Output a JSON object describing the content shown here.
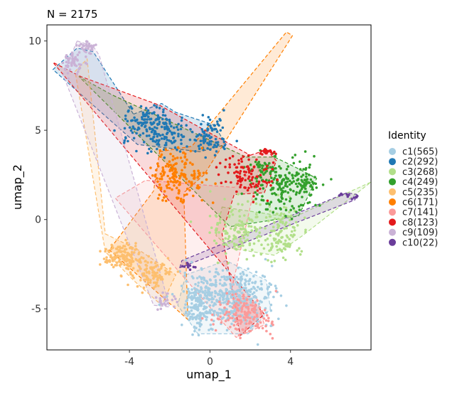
{
  "chart_data": {
    "type": "scatter",
    "title": "N = 2175",
    "xlabel": "umap_1",
    "ylabel": "umap_2",
    "xlim": [
      -8.1,
      8.0
    ],
    "ylim": [
      -7.3,
      10.9
    ],
    "xticks": [
      {
        "value": -4,
        "label": "-4"
      },
      {
        "value": 0,
        "label": "0"
      },
      {
        "value": 4,
        "label": "4"
      }
    ],
    "yticks": [
      {
        "value": 10,
        "label": "10"
      },
      {
        "value": 5,
        "label": "5"
      },
      {
        "value": 0,
        "label": "0"
      },
      {
        "value": -5,
        "label": "-5"
      }
    ],
    "legend": {
      "title": "Identity",
      "position": "right"
    },
    "series": [
      {
        "name": "c1",
        "label": "c1(565)",
        "count": 565,
        "color": "#A6CEE3",
        "centers": [
          [
            1.0,
            -4.3,
            1.0,
            0.85,
            0.7
          ],
          [
            -0.6,
            -4.7,
            0.35,
            0.8,
            0.3
          ]
        ],
        "hull": [
          [
            -1.2,
            -3.1
          ],
          [
            0.8,
            -2.3
          ],
          [
            2.8,
            -3.4
          ],
          [
            3.0,
            -5.0
          ],
          [
            1.9,
            -6.4
          ],
          [
            -0.6,
            -6.4
          ],
          [
            -1.6,
            -4.8
          ]
        ]
      },
      {
        "name": "c2",
        "label": "c2(292)",
        "count": 292,
        "color": "#1F78B4",
        "centers": [
          [
            -3.0,
            5.3,
            0.7,
            0.55,
            0.5
          ],
          [
            0.0,
            4.6,
            0.45,
            0.5,
            0.3
          ],
          [
            -2.0,
            4.5,
            0.7,
            0.5,
            0.2
          ]
        ],
        "hull": [
          [
            -3.8,
            5.9
          ],
          [
            -2.4,
            6.5
          ],
          [
            -1.7,
            6.0
          ],
          [
            0.2,
            5.3
          ],
          [
            0.8,
            4.2
          ],
          [
            -0.5,
            3.8
          ],
          [
            -3.6,
            4.2
          ],
          [
            -7.8,
            8.4
          ],
          [
            -6.6,
            9.6
          ],
          [
            -5.8,
            9.4
          ]
        ]
      },
      {
        "name": "c3",
        "label": "c3(268)",
        "count": 268,
        "color": "#B2DF8A",
        "centers": [
          [
            1.5,
            -0.5,
            0.7,
            0.7,
            0.55
          ],
          [
            3.5,
            -0.6,
            0.45,
            0.8,
            0.45
          ]
        ],
        "hull": [
          [
            0.6,
            0.7
          ],
          [
            2.4,
            0.4
          ],
          [
            4.1,
            0.1
          ],
          [
            8.0,
            2.1
          ],
          [
            4.6,
            -0.9
          ],
          [
            3.2,
            -2.0
          ],
          [
            1.0,
            -1.6
          ],
          [
            0.3,
            -0.9
          ]
        ]
      },
      {
        "name": "c4",
        "label": "c4(249)",
        "count": 249,
        "color": "#33A02C",
        "centers": [
          [
            3.7,
            2.0,
            0.75,
            0.8,
            0.75
          ],
          [
            4.8,
            2.2,
            0.25,
            0.3,
            0.1
          ],
          [
            2.6,
            2.8,
            0.4,
            0.3,
            0.15
          ]
        ],
        "hull": [
          [
            1.8,
            3.5
          ],
          [
            3.2,
            3.5
          ],
          [
            4.3,
            2.9
          ],
          [
            5.3,
            2.3
          ],
          [
            4.4,
            0.2
          ],
          [
            1.0,
            -0.4
          ],
          [
            -6.5,
            8.0
          ],
          [
            -4.9,
            7.0
          ]
        ]
      },
      {
        "name": "c5",
        "label": "c5(235)",
        "count": 235,
        "color": "#FDBF6F",
        "centers": [
          [
            -4.5,
            -2.0,
            0.45,
            0.35,
            0.45
          ],
          [
            -2.9,
            -3.0,
            0.6,
            0.4,
            0.55
          ]
        ],
        "hull": [
          [
            -5.2,
            -0.8
          ],
          [
            -3.4,
            -1.8
          ],
          [
            -1.7,
            -3.1
          ],
          [
            -2.4,
            -4.8
          ],
          [
            -3.8,
            -3.4
          ],
          [
            -5.2,
            -1.8
          ],
          [
            -6.7,
            8.3
          ],
          [
            -6.1,
            9.0
          ]
        ]
      },
      {
        "name": "c6",
        "label": "c6(171)",
        "count": 171,
        "color": "#FF7F00",
        "centers": [
          [
            -1.6,
            2.5,
            0.65,
            0.7,
            1.0
          ]
        ],
        "hull": [
          [
            -2.5,
            3.8
          ],
          [
            -0.9,
            4.1
          ],
          [
            3.8,
            10.5
          ],
          [
            4.1,
            10.3
          ],
          [
            -0.3,
            2.5
          ],
          [
            -1.3,
            1.5
          ],
          [
            -1.1,
            -5.6
          ],
          [
            -5.0,
            -1.7
          ],
          [
            -2.8,
            1.6
          ]
        ]
      },
      {
        "name": "c7",
        "label": "c7(141)",
        "count": 141,
        "color": "#FB9A99",
        "centers": [
          [
            1.7,
            -5.3,
            0.65,
            0.5,
            1.0
          ]
        ],
        "hull": [
          [
            1.0,
            -4.3
          ],
          [
            2.3,
            -4.3
          ],
          [
            2.7,
            -5.9
          ],
          [
            1.3,
            -6.6
          ],
          [
            0.6,
            -5.7
          ],
          [
            -4.7,
            1.2
          ],
          [
            -3.2,
            2.2
          ],
          [
            1.2,
            1.8
          ],
          [
            2.5,
            3.2
          ]
        ]
      },
      {
        "name": "c8",
        "label": "c8(123)",
        "count": 123,
        "color": "#E31A1C",
        "centers": [
          [
            1.9,
            2.5,
            0.6,
            0.55,
            0.75
          ],
          [
            2.8,
            3.8,
            0.2,
            0.1,
            0.25
          ]
        ],
        "hull": [
          [
            2.0,
            3.6
          ],
          [
            2.8,
            3.9
          ],
          [
            3.3,
            3.3
          ],
          [
            2.7,
            1.5
          ],
          [
            1.2,
            1.4
          ],
          [
            0.6,
            -0.8
          ],
          [
            1.5,
            -6.5
          ],
          [
            2.7,
            -5.3
          ],
          [
            -7.8,
            8.8
          ],
          [
            -6.4,
            8.0
          ],
          [
            -2.5,
            6.4
          ]
        ]
      },
      {
        "name": "c9",
        "label": "c9(109)",
        "count": 109,
        "color": "#CAB2D6",
        "centers": [
          [
            -6.8,
            8.8,
            0.25,
            0.35,
            0.35
          ],
          [
            -6.2,
            9.7,
            0.25,
            0.2,
            0.3
          ],
          [
            -2.2,
            -4.6,
            0.25,
            0.25,
            0.1
          ]
        ],
        "hull": [
          [
            -6.6,
            10.0
          ],
          [
            -5.8,
            9.7
          ],
          [
            -5.5,
            9.2
          ],
          [
            -2.0,
            -4.9
          ],
          [
            -2.8,
            -4.8
          ],
          [
            -7.3,
            8.1
          ]
        ]
      },
      {
        "name": "c10",
        "label": "c10(22)",
        "count": 22,
        "color": "#6A3D9A",
        "centers": [
          [
            -1.1,
            -2.6,
            0.15,
            0.1,
            0.5
          ],
          [
            7.1,
            1.3,
            0.15,
            0.1,
            0.3
          ],
          [
            6.5,
            1.4,
            0.1,
            0.05,
            0.2
          ]
        ],
        "hull": [
          [
            -1.5,
            -2.7
          ],
          [
            -1.4,
            -2.3
          ],
          [
            6.8,
            1.5
          ],
          [
            7.3,
            1.4
          ],
          [
            7.2,
            1.1
          ]
        ]
      }
    ]
  }
}
